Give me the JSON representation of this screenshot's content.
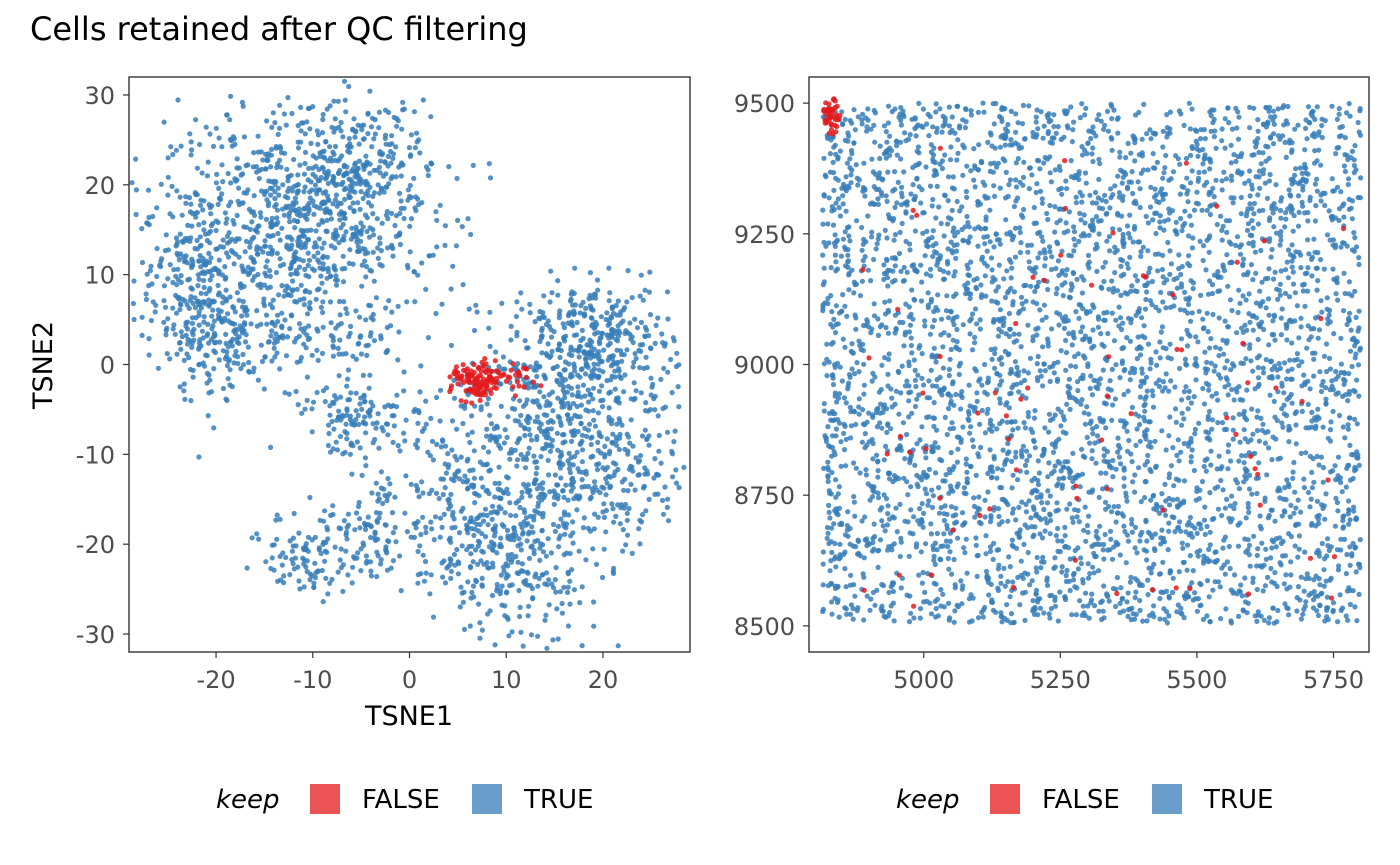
{
  "colors": {
    "FALSE": "#E41A1C",
    "TRUE": "#377EB8"
  },
  "chart_data": [
    {
      "type": "scatter",
      "title": "Cells retained after QC filtering",
      "xlabel": "TSNE1",
      "ylabel": "TSNE2",
      "xlim": [
        -29,
        29
      ],
      "ylim": [
        -32,
        32
      ],
      "x_ticks": [
        -20,
        -10,
        0,
        10,
        20
      ],
      "y_ticks": [
        30,
        20,
        10,
        0,
        -10,
        -20,
        -30
      ],
      "x_tick_labels": [
        "-20",
        "-10",
        "0",
        "10",
        "20"
      ],
      "y_tick_labels": [
        "30",
        "20",
        "10",
        "0",
        "-10",
        "-20",
        "-30"
      ],
      "grid": false,
      "legend": {
        "title": "keep",
        "position": "bottom",
        "entries": [
          "FALSE",
          "TRUE"
        ]
      },
      "series": [
        {
          "name": "TRUE",
          "clusters": [
            {
              "cx": -12,
              "cy": 14,
              "sx": 7,
              "sy": 7,
              "n": 800
            },
            {
              "cx": -22,
              "cy": 10,
              "sx": 3,
              "sy": 6,
              "n": 220
            },
            {
              "cx": -6,
              "cy": 21,
              "sx": 4,
              "sy": 4,
              "n": 260
            },
            {
              "cx": -20,
              "cy": 2,
              "sx": 3,
              "sy": 3,
              "n": 90
            },
            {
              "cx": -10,
              "cy": 2,
              "sx": 4,
              "sy": 1.5,
              "n": 60
            },
            {
              "cx": -5,
              "cy": -6,
              "sx": 3,
              "sy": 2,
              "n": 120
            },
            {
              "cx": 19,
              "cy": 3,
              "sx": 4,
              "sy": 3,
              "n": 300
            },
            {
              "cx": 15,
              "cy": -6,
              "sx": 6,
              "sy": 5,
              "n": 450
            },
            {
              "cx": 10,
              "cy": -20,
              "sx": 5,
              "sy": 5,
              "n": 420
            },
            {
              "cx": 22,
              "cy": -12,
              "sx": 3,
              "sy": 4,
              "n": 120
            },
            {
              "cx": -10,
              "cy": -21,
              "sx": 2.5,
              "sy": 2.5,
              "n": 110
            },
            {
              "cx": -3,
              "cy": -18,
              "sx": 2,
              "sy": 3,
              "n": 80
            },
            {
              "cx": 4,
              "cy": -14,
              "sx": 2,
              "sy": 4,
              "n": 60
            }
          ]
        },
        {
          "name": "FALSE",
          "clusters": [
            {
              "cx": 7,
              "cy": -2,
              "sx": 1.3,
              "sy": 1.1,
              "n": 110
            },
            {
              "cx": 11,
              "cy": -1.5,
              "sx": 1.2,
              "sy": 0.8,
              "n": 25
            }
          ]
        }
      ]
    },
    {
      "type": "scatter",
      "title": "",
      "xlabel": "",
      "ylabel": "",
      "xlim": [
        4790,
        5815
      ],
      "ylim": [
        8450,
        9550
      ],
      "x_ticks": [
        5000,
        5250,
        5500,
        5750
      ],
      "y_ticks": [
        9500,
        9250,
        9000,
        8750,
        8500
      ],
      "x_tick_labels": [
        "5000",
        "5250",
        "5500",
        "5750"
      ],
      "y_tick_labels": [
        "9500",
        "9250",
        "9000",
        "8750",
        "8500"
      ],
      "grid": false,
      "legend": {
        "title": "keep",
        "position": "bottom",
        "entries": [
          "FALSE",
          "TRUE"
        ]
      },
      "series": [
        {
          "name": "TRUE",
          "uniform": {
            "xmin": 4815,
            "xmax": 5800,
            "ymin": 8505,
            "ymax": 9500,
            "n": 4200
          }
        },
        {
          "name": "FALSE",
          "clusters": [
            {
              "cx": 4830,
              "cy": 9475,
              "sx": 8,
              "sy": 15,
              "n": 45
            }
          ],
          "scatter": {
            "xmin": 4840,
            "xmax": 5780,
            "ymin": 8520,
            "ymax": 9450,
            "n": 75
          }
        }
      ]
    }
  ]
}
